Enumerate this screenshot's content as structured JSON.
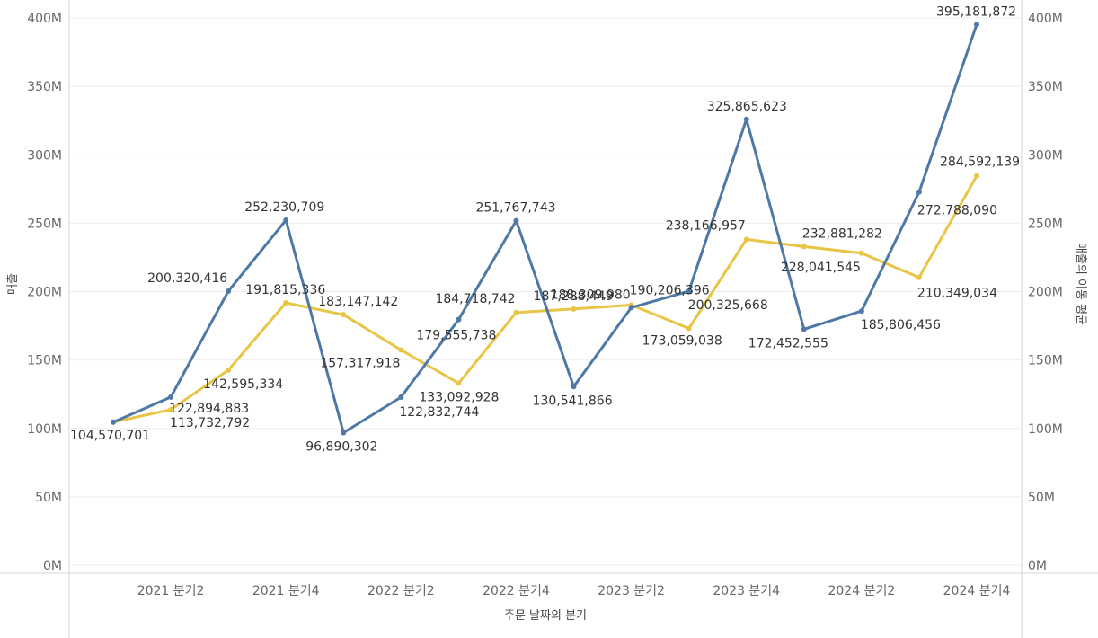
{
  "chart_data": {
    "type": "line",
    "xlabel": "주문 날짜의 분기",
    "ylabel": "매출",
    "y2label": "매출의 이동 평균",
    "ylim": [
      0,
      400000000
    ],
    "y2lim": [
      0,
      400000000
    ],
    "y_ticks": [
      "0M",
      "50M",
      "100M",
      "150M",
      "200M",
      "250M",
      "300M",
      "350M",
      "400M"
    ],
    "y2_ticks": [
      "0M",
      "50M",
      "100M",
      "150M",
      "200M",
      "250M",
      "300M",
      "350M",
      "400M"
    ],
    "x": [
      "2021 분기1",
      "2021 분기2",
      "2021 분기3",
      "2021 분기4",
      "2022 분기1",
      "2022 분기2",
      "2022 분기3",
      "2022 분기4",
      "2023 분기1",
      "2023 분기2",
      "2023 분기3",
      "2023 분기4",
      "2024 분기1",
      "2024 분기2",
      "2024 분기3",
      "2024 분기4"
    ],
    "x_tick_labels": [
      "",
      "2021 분기2",
      "",
      "2021 분기4",
      "",
      "2022 분기2",
      "",
      "2022 분기4",
      "",
      "2023 분기2",
      "",
      "2023 분기4",
      "",
      "2024 분기2",
      "",
      "2024 분기4"
    ],
    "grid": true,
    "series": [
      {
        "name": "매출",
        "axis": "left",
        "color": "#4e79a7",
        "values": [
          104570701,
          122894883,
          200320416,
          252230709,
          96890302,
          122832744,
          179555738,
          251767743,
          130541866,
          188309980,
          200325668,
          325865623,
          172452555,
          185806456,
          272788090,
          395181872
        ],
        "labels": [
          "104,570,701",
          "122,894,883",
          "200,320,416",
          "252,230,709",
          "96,890,302",
          "122,832,744",
          "179,555,738",
          "251,767,743",
          "130,541,866",
          "188,309,980",
          "200,325,668",
          "325,865,623",
          "172,452,555",
          "185,806,456",
          "272,788,090",
          "395,181,872"
        ]
      },
      {
        "name": "매출의 이동 평균",
        "axis": "right",
        "color": "#e8c547",
        "values": [
          104570701,
          113732792,
          142595334,
          191815336,
          183147142,
          157317918,
          133092928,
          184718742,
          187288449,
          190206396,
          173059038,
          238166957,
          232881282,
          228041545,
          210349034,
          284592139
        ],
        "labels": [
          "",
          "113,732,792",
          "142,595,334",
          "191,815,336",
          "183,147,142",
          "157,317,918",
          "133,092,928",
          "184,718,742",
          "187,288,449",
          "190,206,396",
          "173,059,038",
          "238,166,957",
          "232,881,282",
          "228,041,545",
          "210,349,034",
          "284,592,139"
        ]
      }
    ]
  }
}
